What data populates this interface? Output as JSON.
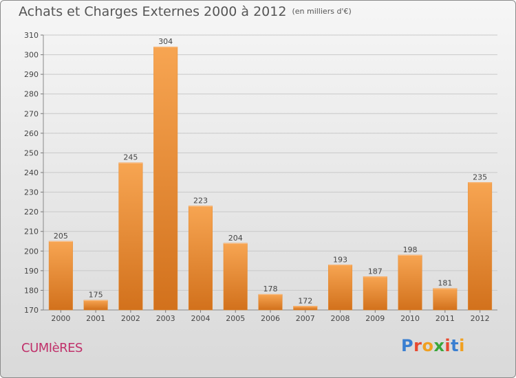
{
  "chart_data": {
    "type": "bar",
    "title": "Achats et Charges Externes 2000 à 2012",
    "subtitle": "(en milliers d'€)",
    "categories": [
      "2000",
      "2001",
      "2002",
      "2003",
      "2004",
      "2005",
      "2006",
      "2007",
      "2008",
      "2009",
      "2010",
      "2011",
      "2012"
    ],
    "values": [
      205,
      175,
      245,
      304,
      223,
      204,
      178,
      172,
      193,
      187,
      198,
      181,
      235
    ],
    "ylim": [
      170,
      310
    ],
    "yticks": [
      170,
      180,
      190,
      200,
      210,
      220,
      230,
      240,
      250,
      260,
      270,
      280,
      290,
      300,
      310
    ],
    "grid": true,
    "xlabel": "",
    "ylabel": "",
    "bar_color": "#f08a2a"
  },
  "commune": "CUMIèRES",
  "logo": {
    "letters": [
      "P",
      "r",
      "o",
      "x",
      "i",
      "t",
      "i"
    ],
    "colors": [
      "#3a7fd1",
      "#e8492f",
      "#f0a020",
      "#3aa63a",
      "#e8492f",
      "#3a7fd1",
      "#f0a020"
    ]
  }
}
